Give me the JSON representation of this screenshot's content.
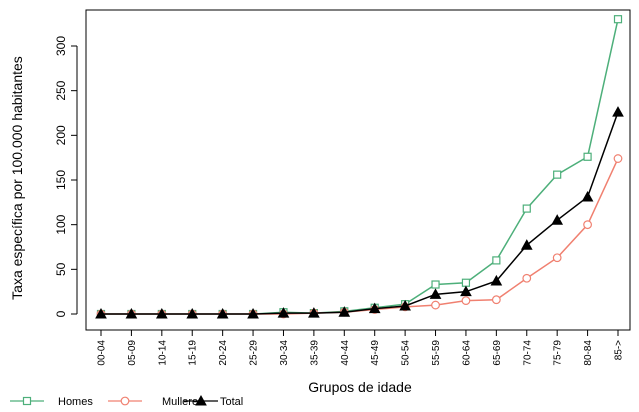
{
  "chart_data": {
    "type": "line",
    "categories": [
      "00-04",
      "05-09",
      "10-14",
      "15-19",
      "20-24",
      "25-29",
      "30-34",
      "35-39",
      "40-44",
      "45-49",
      "50-54",
      "55-59",
      "60-64",
      "65-69",
      "70-74",
      "75-79",
      "80-84",
      "85->"
    ],
    "series": [
      {
        "name": "Homes",
        "color": "#4daf7a",
        "marker": "square",
        "values": [
          0,
          0,
          0,
          0,
          0,
          0,
          2,
          1,
          3,
          7,
          11,
          33,
          35,
          60,
          118,
          156,
          176,
          330
        ]
      },
      {
        "name": "Mulleres",
        "color": "#f08070",
        "marker": "circle",
        "values": [
          0,
          0,
          0,
          0,
          0,
          0,
          0,
          1,
          2,
          5,
          8,
          10,
          15,
          16,
          40,
          63,
          100,
          174
        ]
      },
      {
        "name": "Total",
        "color": "#000000",
        "marker": "triangle",
        "values": [
          0,
          0,
          0,
          0,
          0,
          0,
          1,
          1,
          2,
          6,
          9,
          22,
          25,
          37,
          77,
          105,
          131,
          226
        ]
      }
    ],
    "xlabel": "Grupos de idade",
    "ylabel": "Taxa específica por 100.000 habitantes",
    "ylim": [
      0,
      340
    ],
    "yticks": [
      0,
      50,
      100,
      150,
      200,
      250,
      300
    ],
    "grid": false,
    "legend_position": "bottom-left"
  }
}
